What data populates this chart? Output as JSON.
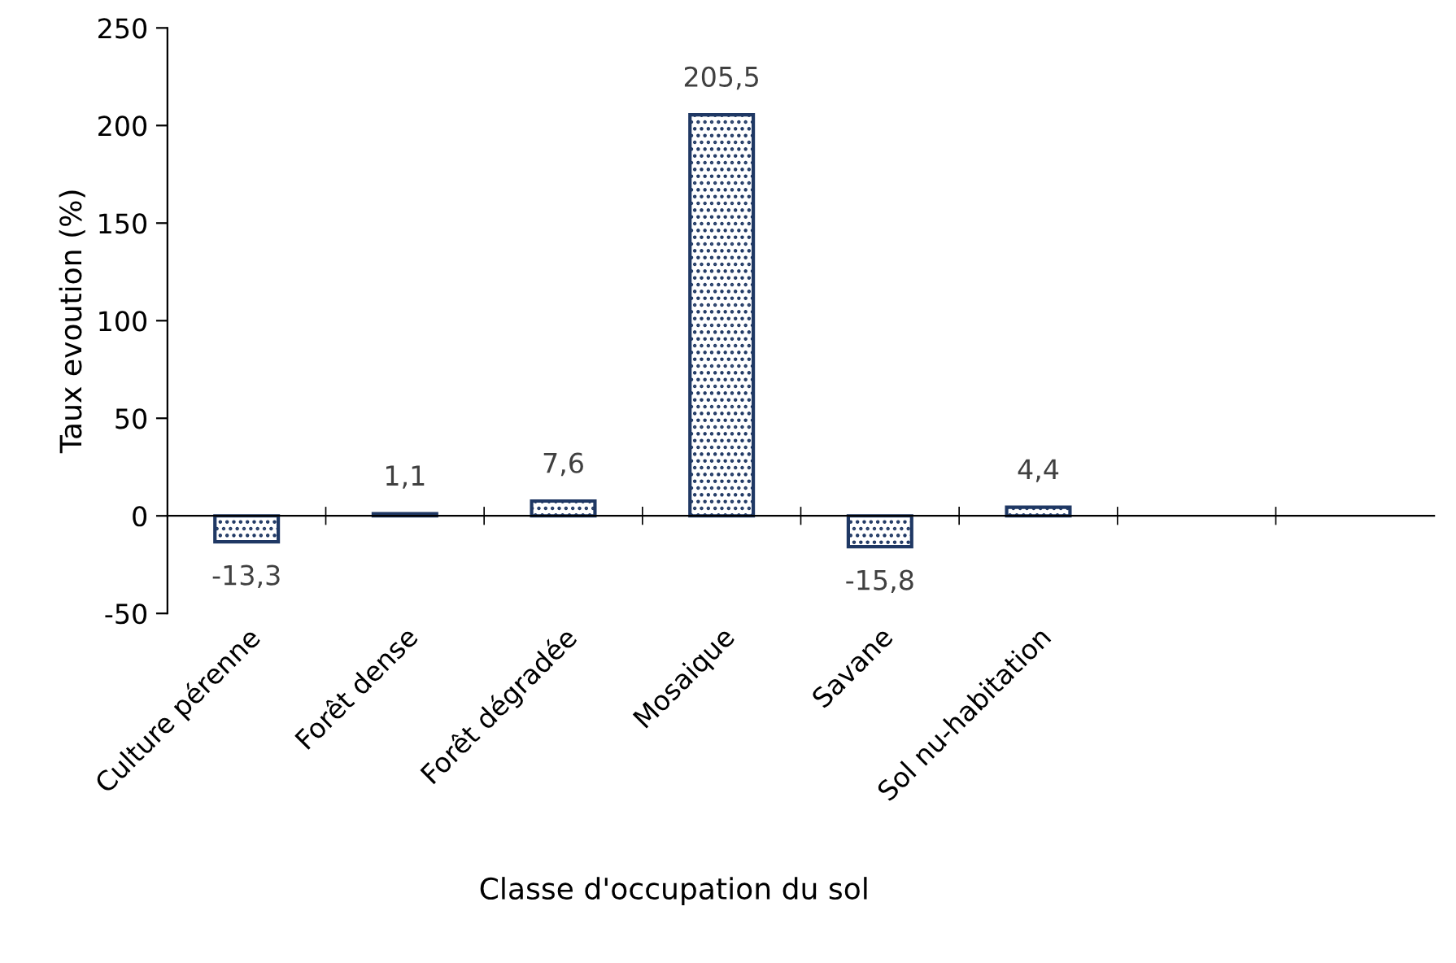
{
  "chart_data": {
    "type": "bar",
    "xlabel": "Classe d'occupation du sol",
    "ylabel": "Taux evoution (%)",
    "categories": [
      "Culture pérenne",
      "Forêt dense",
      "Forêt dégradée",
      "Mosaique",
      "Savane",
      "Sol nu-habitation",
      null,
      null
    ],
    "values": [
      -13.3,
      1.1,
      7.6,
      205.5,
      -15.8,
      4.4,
      null,
      null
    ],
    "value_labels": [
      "-13,3",
      "1,1",
      "7,6",
      "205,5",
      "-15,8",
      "4,4",
      null,
      null
    ],
    "color": "#1f3864",
    "ylim": [
      -50,
      250
    ],
    "yticks": [
      -50,
      0,
      50,
      100,
      150,
      200,
      250
    ],
    "legend": false
  }
}
